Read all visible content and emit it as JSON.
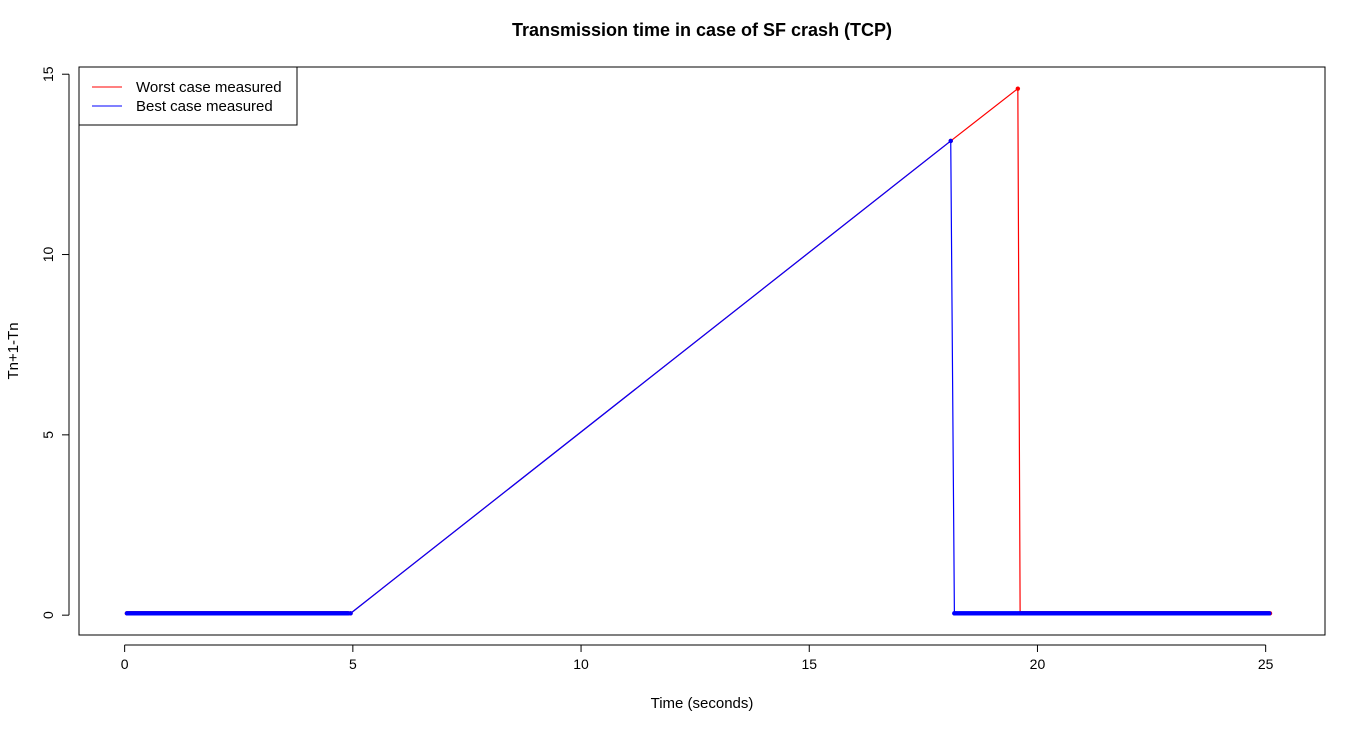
{
  "chart_data": {
    "type": "line",
    "title": "Transmission time in case of SF crash (TCP)",
    "xlabel": "Time (seconds)",
    "ylabel": "Tn+1-Tn",
    "xlim": [
      -1,
      26.3
    ],
    "ylim": [
      -0.55,
      15.2
    ],
    "x_ticks": [
      0,
      5,
      10,
      15,
      20,
      25
    ],
    "y_ticks": [
      0,
      5,
      10,
      15
    ],
    "grid": false,
    "legend_position": "top-left",
    "series": [
      {
        "name": "Worst case measured",
        "color": "#ff0000",
        "baseline_y": 0.05,
        "segments": [
          {
            "type": "dense",
            "x_start": 0.05,
            "x_end": 4.92,
            "y": 0.05
          },
          {
            "type": "points",
            "points": [
              [
                4.95,
                0.05
              ],
              [
                18.1,
                13.15
              ],
              [
                19.57,
                14.6
              ],
              [
                19.62,
                0.05
              ]
            ]
          },
          {
            "type": "dense",
            "x_start": 19.62,
            "x_end": 25.1,
            "y": 0.05
          }
        ]
      },
      {
        "name": "Best case measured",
        "color": "#0000ff",
        "baseline_y": 0.05,
        "segments": [
          {
            "type": "dense",
            "x_start": 0.05,
            "x_end": 4.92,
            "y": 0.05
          },
          {
            "type": "points",
            "points": [
              [
                4.95,
                0.05
              ],
              [
                18.1,
                13.15
              ],
              [
                18.18,
                0.05
              ]
            ]
          },
          {
            "type": "dense",
            "x_start": 18.18,
            "x_end": 25.1,
            "y": 0.05
          }
        ]
      }
    ]
  }
}
